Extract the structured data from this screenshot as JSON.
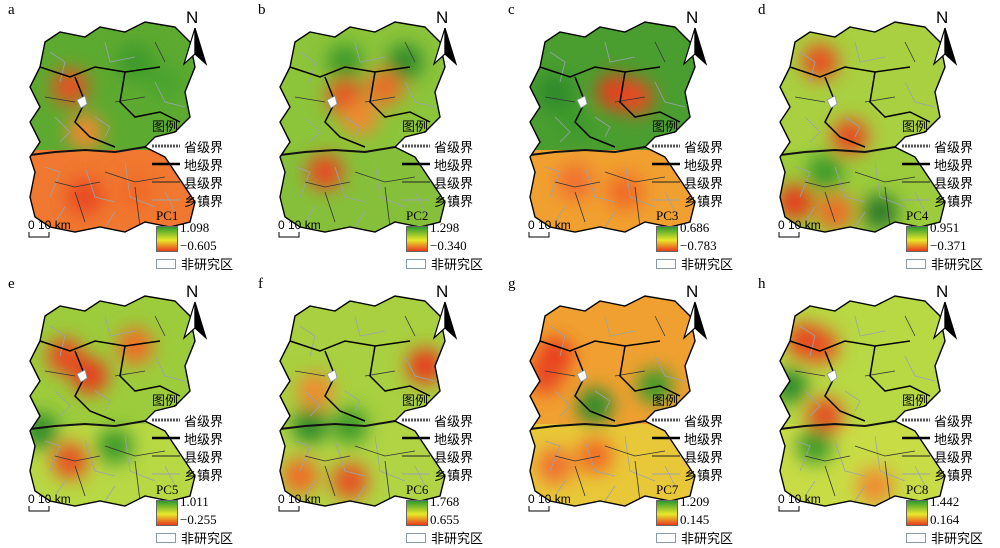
{
  "legend": {
    "title": "图例",
    "items": [
      "省级界",
      "地级界",
      "县级界",
      "乡镇界"
    ],
    "nonstudy": "非研究区"
  },
  "north_label": "N",
  "scale_label": "0 10 km",
  "colors": {
    "high": "#2e9a2e",
    "mid": "#e8e82a",
    "low": "#e83a1e",
    "province_line": "#555555",
    "prefecture_line": "#000000",
    "county_line": "#222222",
    "township_line": "#9aa4ac",
    "nonstudy": "#8a9aa8"
  },
  "panels": [
    {
      "letter": "a",
      "pc": "PC1",
      "max": "1.098",
      "min": "−0.605",
      "north_zone": "#5daa30",
      "south_zone": "#f07830",
      "hot": [
        [
          55,
          65,
          "#e85020"
        ],
        [
          70,
          110,
          "#f08a30"
        ],
        [
          70,
          175,
          "#e84820"
        ],
        [
          120,
          170,
          "#f06a28"
        ]
      ],
      "cool": [
        [
          120,
          40,
          "#3c9a2c"
        ],
        [
          150,
          60,
          "#4aa42e"
        ]
      ]
    },
    {
      "letter": "b",
      "pc": "PC2",
      "max": "1.298",
      "min": "−0.340",
      "north_zone": "#8cc43a",
      "south_zone": "#86c03a",
      "hot": [
        [
          80,
          75,
          "#e85020"
        ],
        [
          95,
          95,
          "#f08a30"
        ],
        [
          60,
          150,
          "#e84820"
        ],
        [
          120,
          65,
          "#f06a28"
        ]
      ],
      "cool": [
        [
          140,
          40,
          "#2e8a2a"
        ],
        [
          80,
          40,
          "#3c9a2c"
        ]
      ]
    },
    {
      "letter": "c",
      "pc": "PC3",
      "max": "0.686",
      "min": "−0.783",
      "north_zone": "#4a9e30",
      "south_zone": "#f0a030",
      "hot": [
        [
          100,
          70,
          "#e83a1e"
        ],
        [
          120,
          75,
          "#e84820"
        ],
        [
          60,
          160,
          "#f07030"
        ],
        [
          110,
          170,
          "#f06a28"
        ]
      ],
      "cool": [
        [
          40,
          70,
          "#2e8a2a"
        ],
        [
          60,
          100,
          "#3c9a2c"
        ]
      ]
    },
    {
      "letter": "d",
      "pc": "PC4",
      "max": "0.951",
      "min": "−0.371",
      "north_zone": "#a8d040",
      "south_zone": "#9ccc3c",
      "hot": [
        [
          85,
          115,
          "#e84820"
        ],
        [
          30,
          180,
          "#e83a1e"
        ],
        [
          70,
          190,
          "#f06a28"
        ],
        [
          55,
          40,
          "#e85020"
        ]
      ],
      "cool": [
        [
          115,
          190,
          "#2e7a2a"
        ],
        [
          60,
          150,
          "#3c9a2c"
        ]
      ]
    },
    {
      "letter": "e",
      "pc": "PC5",
      "max": "1.011",
      "min": "−0.255",
      "north_zone": "#9ccc3c",
      "south_zone": "#b8d844",
      "hot": [
        [
          50,
          60,
          "#e84820"
        ],
        [
          75,
          80,
          "#e83a1e"
        ],
        [
          55,
          165,
          "#e85020"
        ],
        [
          120,
          50,
          "#f06a28"
        ]
      ],
      "cool": [
        [
          25,
          135,
          "#2e8a2a"
        ],
        [
          100,
          150,
          "#3c9a2c"
        ]
      ]
    },
    {
      "letter": "f",
      "pc": "PC6",
      "max": "1.768",
      "min": "0.655",
      "north_zone": "#a8d040",
      "south_zone": "#b0d444",
      "hot": [
        [
          160,
          70,
          "#e83a1e"
        ],
        [
          35,
          180,
          "#f06a28"
        ],
        [
          85,
          185,
          "#e85020"
        ],
        [
          50,
          95,
          "#f08a30"
        ]
      ],
      "cool": [
        [
          45,
          130,
          "#2e8a2a"
        ],
        [
          85,
          130,
          "#3c9a2c"
        ]
      ]
    },
    {
      "letter": "g",
      "pc": "PC7",
      "max": "1.209",
      "min": "0.145",
      "north_zone": "#f0a030",
      "south_zone": "#e8c838",
      "hot": [
        [
          40,
          60,
          "#e83a1e"
        ],
        [
          30,
          80,
          "#e84820"
        ],
        [
          80,
          160,
          "#f06a28"
        ],
        [
          40,
          170,
          "#f07030"
        ]
      ],
      "cool": [
        [
          80,
          110,
          "#2e8a2a"
        ],
        [
          140,
          90,
          "#3c9a2c"
        ]
      ]
    },
    {
      "letter": "h",
      "pc": "PC8",
      "max": "1.442",
      "min": "0.164",
      "north_zone": "#b8d844",
      "south_zone": "#c8dc46",
      "hot": [
        [
          40,
          45,
          "#e83a1e"
        ],
        [
          60,
          120,
          "#e84820"
        ],
        [
          55,
          50,
          "#e85020"
        ],
        [
          110,
          190,
          "#f08a30"
        ]
      ],
      "cool": [
        [
          25,
          90,
          "#2e8a2a"
        ],
        [
          50,
          150,
          "#3c9a2c"
        ]
      ]
    }
  ]
}
